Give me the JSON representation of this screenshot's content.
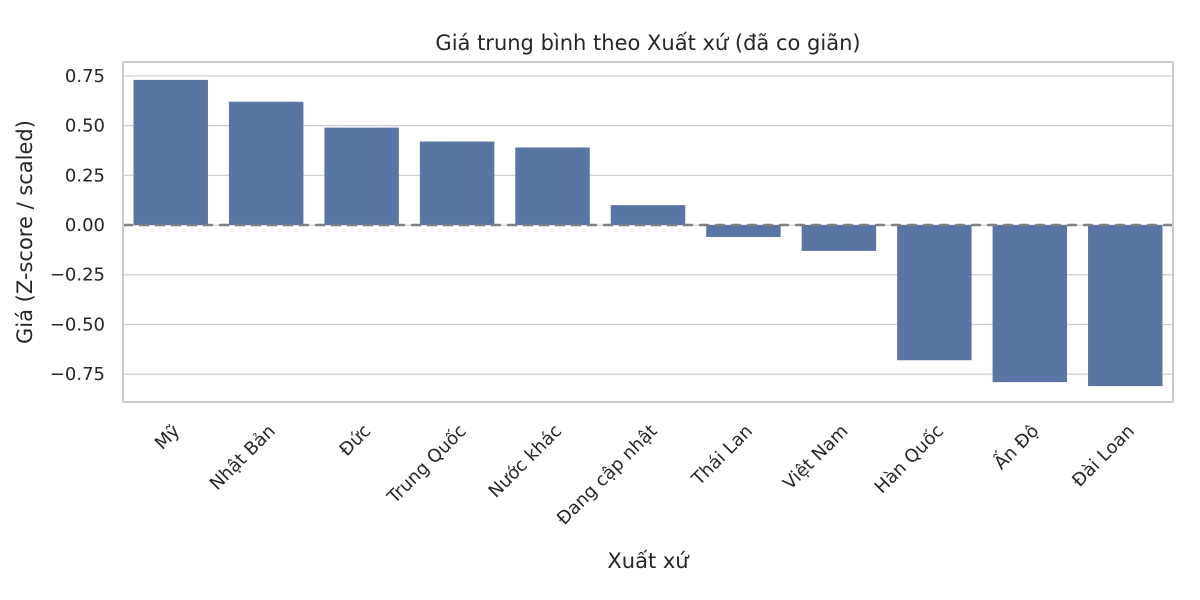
{
  "chart_data": {
    "type": "bar",
    "title": "Giá trung bình theo Xuất xứ (đã co giãn)",
    "xlabel": "Xuất xứ",
    "ylabel": "Giá (Z-score / scaled)",
    "categories": [
      "Mỹ",
      "Nhật Bản",
      "Đức",
      "Trung Quốc",
      "Nước khác",
      "Đang cập nhật",
      "Thái Lan",
      "Việt Nam",
      "Hàn Quốc",
      "Ấn Độ",
      "Đài Loan"
    ],
    "values": [
      0.73,
      0.62,
      0.49,
      0.42,
      0.39,
      0.1,
      -0.06,
      -0.13,
      -0.68,
      -0.79,
      -0.81
    ],
    "ylim": [
      -0.89,
      0.82
    ],
    "yticks": [
      0.75,
      0.5,
      0.25,
      0.0,
      -0.25,
      -0.5,
      -0.75
    ],
    "ytick_labels": [
      "0.75",
      "0.50",
      "0.25",
      "0.00",
      "−0.25",
      "−0.50",
      "−0.75"
    ],
    "bar_color": "#5975a4",
    "reference_line": {
      "y": 0,
      "style": "dashed",
      "color": "#808080"
    },
    "grid": true,
    "legend": false
  }
}
